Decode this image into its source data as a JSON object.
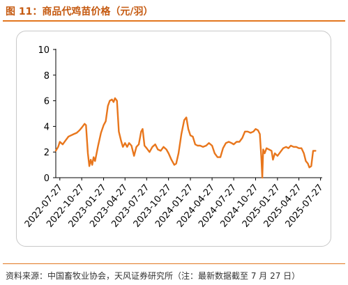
{
  "figure": {
    "title": "图 11：商品代鸡苗价格（元/羽）",
    "source": "资料来源：中国畜牧业协会，天风证券研究所（注：最新数据截至 7 月 27 日）"
  },
  "colors": {
    "line": "#e8761c",
    "accent": "#c55a11",
    "rule": "#e2761f"
  },
  "chart_data": {
    "type": "line",
    "title": "商品代鸡苗价格",
    "ylabel": "",
    "xlabel": "",
    "ylim": [
      0,
      10
    ],
    "yticks": [
      0,
      2,
      4,
      6,
      8,
      10
    ],
    "xlim": [
      "2022-07-10",
      "2025-08-03"
    ],
    "xticks": [
      "2022-07-27",
      "2022-10-27",
      "2023-01-27",
      "2023-04-27",
      "2023-07-27",
      "2023-10-27",
      "2024-01-27",
      "2024-04-27",
      "2024-07-27",
      "2024-10-27",
      "2025-01-27",
      "2025-04-27",
      "2025-07-27"
    ],
    "grid": false,
    "legend": "none",
    "series": [
      {
        "name": "",
        "points": [
          [
            "2022-07-10",
            2.1
          ],
          [
            "2022-07-20",
            2.4
          ],
          [
            "2022-07-27",
            2.8
          ],
          [
            "2022-08-08",
            2.6
          ],
          [
            "2022-08-20",
            2.9
          ],
          [
            "2022-09-01",
            3.2
          ],
          [
            "2022-09-12",
            3.3
          ],
          [
            "2022-09-24",
            3.4
          ],
          [
            "2022-10-06",
            3.5
          ],
          [
            "2022-10-18",
            3.7
          ],
          [
            "2022-10-27",
            3.9
          ],
          [
            "2022-11-08",
            4.2
          ],
          [
            "2022-11-14",
            4.1
          ],
          [
            "2022-11-22",
            1.9
          ],
          [
            "2022-11-28",
            0.9
          ],
          [
            "2022-12-04",
            1.4
          ],
          [
            "2022-12-10",
            1.0
          ],
          [
            "2022-12-16",
            1.6
          ],
          [
            "2022-12-22",
            1.3
          ],
          [
            "2023-01-04",
            2.5
          ],
          [
            "2023-01-16",
            3.5
          ],
          [
            "2023-01-27",
            4.1
          ],
          [
            "2023-02-05",
            4.4
          ],
          [
            "2023-02-14",
            5.6
          ],
          [
            "2023-02-22",
            6.0
          ],
          [
            "2023-03-03",
            6.1
          ],
          [
            "2023-03-10",
            5.9
          ],
          [
            "2023-03-16",
            6.2
          ],
          [
            "2023-03-24",
            6.0
          ],
          [
            "2023-04-01",
            3.6
          ],
          [
            "2023-04-10",
            2.9
          ],
          [
            "2023-04-18",
            2.4
          ],
          [
            "2023-04-27",
            2.7
          ],
          [
            "2023-05-06",
            2.4
          ],
          [
            "2023-05-14",
            2.7
          ],
          [
            "2023-05-24",
            2.5
          ],
          [
            "2023-06-04",
            1.7
          ],
          [
            "2023-06-14",
            2.4
          ],
          [
            "2023-06-24",
            2.6
          ],
          [
            "2023-07-04",
            3.6
          ],
          [
            "2023-07-10",
            3.8
          ],
          [
            "2023-07-18",
            2.5
          ],
          [
            "2023-07-27",
            2.3
          ],
          [
            "2023-08-08",
            2.0
          ],
          [
            "2023-08-20",
            2.4
          ],
          [
            "2023-09-01",
            2.6
          ],
          [
            "2023-09-12",
            2.2
          ],
          [
            "2023-09-24",
            2.1
          ],
          [
            "2023-10-06",
            2.4
          ],
          [
            "2023-10-18",
            2.2
          ],
          [
            "2023-10-27",
            1.9
          ],
          [
            "2023-11-08",
            1.4
          ],
          [
            "2023-11-20",
            1.0
          ],
          [
            "2023-11-28",
            1.1
          ],
          [
            "2023-12-08",
            1.9
          ],
          [
            "2023-12-20",
            3.4
          ],
          [
            "2024-01-01",
            4.5
          ],
          [
            "2024-01-10",
            4.7
          ],
          [
            "2024-01-18",
            3.8
          ],
          [
            "2024-01-27",
            3.3
          ],
          [
            "2024-02-06",
            3.2
          ],
          [
            "2024-02-16",
            2.6
          ],
          [
            "2024-02-26",
            2.5
          ],
          [
            "2024-03-08",
            2.5
          ],
          [
            "2024-03-20",
            2.4
          ],
          [
            "2024-04-02",
            2.5
          ],
          [
            "2024-04-14",
            2.7
          ],
          [
            "2024-04-27",
            2.5
          ],
          [
            "2024-05-08",
            1.9
          ],
          [
            "2024-05-20",
            1.6
          ],
          [
            "2024-06-01",
            1.6
          ],
          [
            "2024-06-12",
            2.3
          ],
          [
            "2024-06-24",
            2.7
          ],
          [
            "2024-07-06",
            2.8
          ],
          [
            "2024-07-18",
            2.7
          ],
          [
            "2024-07-27",
            2.6
          ],
          [
            "2024-08-08",
            2.8
          ],
          [
            "2024-08-20",
            2.8
          ],
          [
            "2024-09-01",
            3.1
          ],
          [
            "2024-09-12",
            3.6
          ],
          [
            "2024-09-24",
            3.6
          ],
          [
            "2024-10-06",
            3.5
          ],
          [
            "2024-10-18",
            3.6
          ],
          [
            "2024-10-27",
            3.8
          ],
          [
            "2024-11-06",
            3.7
          ],
          [
            "2024-11-14",
            3.4
          ],
          [
            "2024-11-20",
            1.6
          ],
          [
            "2024-11-24",
            0.0
          ],
          [
            "2024-11-28",
            2.2
          ],
          [
            "2024-12-04",
            1.9
          ],
          [
            "2024-12-12",
            2.3
          ],
          [
            "2024-12-22",
            2.2
          ],
          [
            "2025-01-02",
            2.1
          ],
          [
            "2025-01-08",
            1.4
          ],
          [
            "2025-01-16",
            1.9
          ],
          [
            "2025-01-27",
            1.7
          ],
          [
            "2025-02-08",
            2.0
          ],
          [
            "2025-02-20",
            2.3
          ],
          [
            "2025-03-04",
            2.4
          ],
          [
            "2025-03-14",
            2.3
          ],
          [
            "2025-03-24",
            2.5
          ],
          [
            "2025-04-05",
            2.4
          ],
          [
            "2025-04-16",
            2.4
          ],
          [
            "2025-04-27",
            2.3
          ],
          [
            "2025-05-08",
            2.3
          ],
          [
            "2025-05-18",
            1.9
          ],
          [
            "2025-05-26",
            1.3
          ],
          [
            "2025-06-04",
            1.1
          ],
          [
            "2025-06-10",
            0.8
          ],
          [
            "2025-06-18",
            0.9
          ],
          [
            "2025-06-26",
            2.1
          ],
          [
            "2025-07-06",
            2.1
          ]
        ]
      }
    ]
  }
}
